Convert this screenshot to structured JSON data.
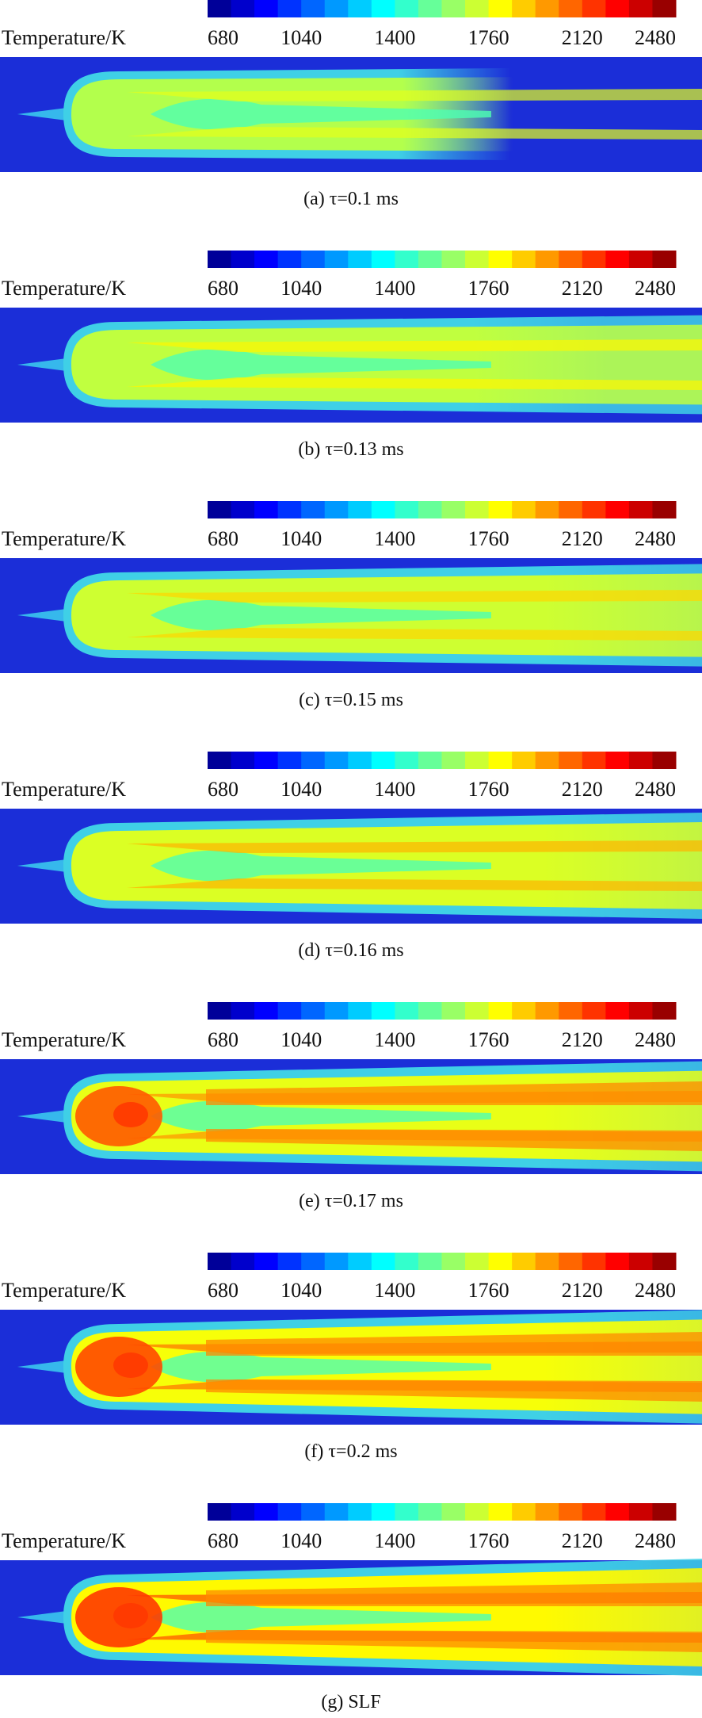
{
  "panels": [
    {
      "colorbar_label": "Temperature/K",
      "ticks": [
        "680",
        "1040",
        "1400",
        "1760",
        "2120",
        "2480"
      ],
      "caption": "(a) τ=0.1 ms"
    },
    {
      "colorbar_label": "Temperature/K",
      "ticks": [
        "680",
        "1040",
        "1400",
        "1760",
        "2120",
        "2480"
      ],
      "caption": "(b) τ=0.13 ms"
    },
    {
      "colorbar_label": "Temperature/K",
      "ticks": [
        "680",
        "1040",
        "1400",
        "1760",
        "2120",
        "2480"
      ],
      "caption": "(c) τ=0.15 ms"
    },
    {
      "colorbar_label": "Temperature/K",
      "ticks": [
        "680",
        "1040",
        "1400",
        "1760",
        "2120",
        "2480"
      ],
      "caption": "(d) τ=0.16 ms"
    },
    {
      "colorbar_label": "Temperature/K",
      "ticks": [
        "680",
        "1040",
        "1400",
        "1760",
        "2120",
        "2480"
      ],
      "caption": "(e) τ=0.17 ms"
    },
    {
      "colorbar_label": "Temperature/K",
      "ticks": [
        "680",
        "1040",
        "1400",
        "1760",
        "2120",
        "2480"
      ],
      "caption": "(f) τ=0.2 ms"
    },
    {
      "colorbar_label": "Temperature/K",
      "ticks": [
        "680",
        "1040",
        "1400",
        "1760",
        "2120",
        "2480"
      ],
      "caption": "(g) SLF"
    }
  ]
}
